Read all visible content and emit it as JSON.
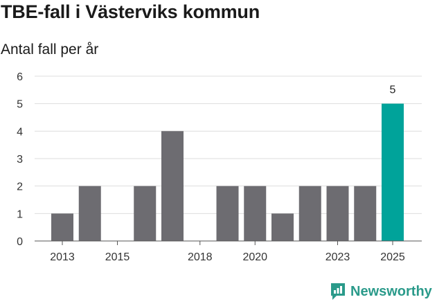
{
  "colors": {
    "bar": "#6d6c71",
    "highlight": "#00a39a",
    "grid": "#dddddd",
    "brand": "#2a9a8a"
  },
  "brand": {
    "name": "Newsworthy",
    "icon": "newsworthy-logo-icon"
  },
  "chart_data": {
    "type": "bar",
    "title": "TBE-fall i Västerviks kommun",
    "subtitle": "Antal fall per år",
    "xlabel": "",
    "ylabel": "Antal fall per år",
    "categories": [
      "2013",
      "2014",
      "2015",
      "2016",
      "2017",
      "2018",
      "2019",
      "2020",
      "2021",
      "2022",
      "2023",
      "2024",
      "2025"
    ],
    "values": [
      1,
      2,
      0,
      2,
      4,
      0,
      2,
      2,
      1,
      2,
      2,
      2,
      5
    ],
    "x_tick_labels": [
      "2013",
      "2015",
      "2018",
      "2020",
      "2023",
      "2025"
    ],
    "y_ticks": [
      0,
      1,
      2,
      3,
      4,
      5,
      6
    ],
    "ylim": [
      0,
      6
    ],
    "highlight": {
      "category": "2025",
      "label": "5"
    },
    "grid": true
  }
}
